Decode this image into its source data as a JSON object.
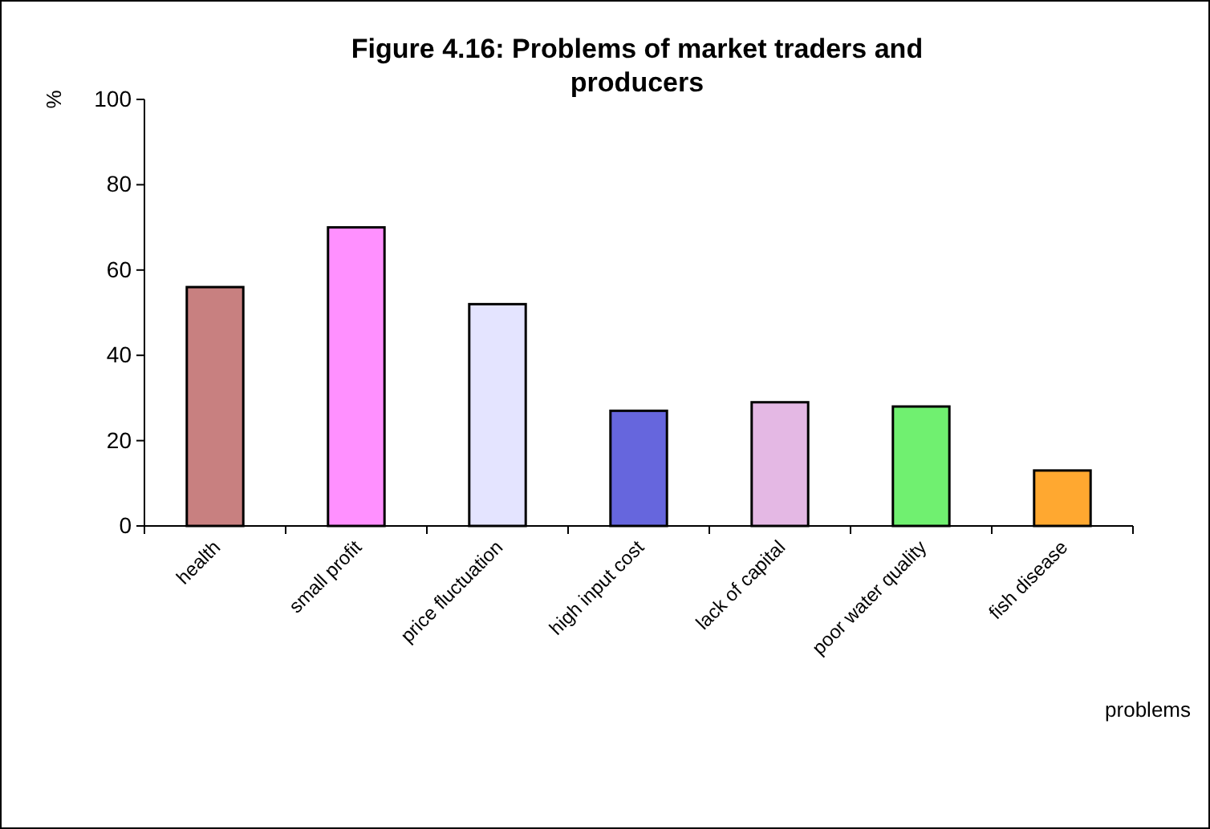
{
  "chart_data": {
    "type": "bar",
    "title": "Figure 4.16: Problems of market traders and producers",
    "xlabel": "problems",
    "ylabel": "%",
    "categories": [
      "health",
      "small profit",
      "price fluctuation",
      "high input cost",
      "lack of capital",
      "poor water quality",
      "fish disease"
    ],
    "values": [
      56,
      70,
      52,
      27,
      29,
      28,
      13
    ],
    "colors": [
      "#c88080",
      "#ff90ff",
      "#e4e4ff",
      "#6666dd",
      "#e4b8e4",
      "#70f070",
      "#ffa830"
    ],
    "ylim": [
      0,
      100
    ],
    "yticks": [
      0,
      20,
      40,
      60,
      80,
      100
    ],
    "grid": false
  }
}
